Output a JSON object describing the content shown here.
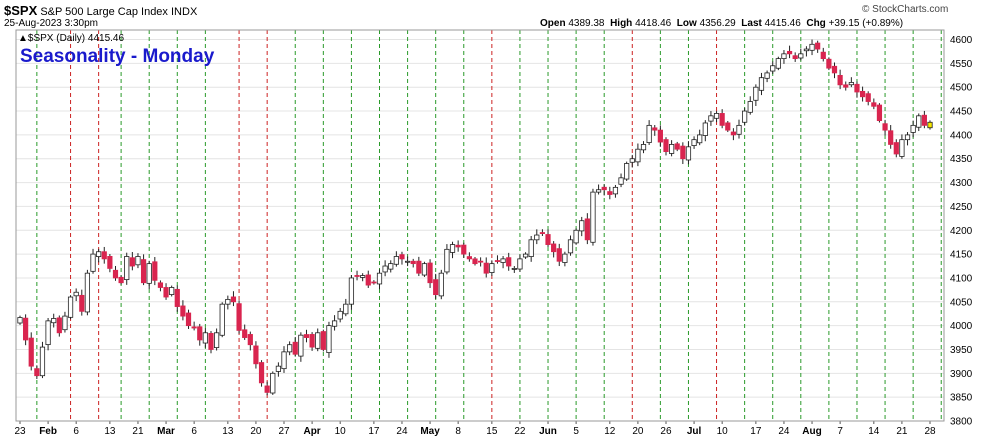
{
  "header": {
    "symbol": "$SPX",
    "name": "S&P 500 Large Cap Index",
    "exchange": "INDX",
    "date": "25-Aug-2023 3:30pm",
    "open_label": "Open",
    "open": "4389.38",
    "high_label": "High",
    "high": "4418.46",
    "low_label": "Low",
    "low": "4356.29",
    "last_label": "Last",
    "last": "4415.46",
    "chg_label": "Chg",
    "chg": "+39.15 (+0.89%)",
    "watermark": "© StockCharts.com"
  },
  "legend": {
    "text": "▲$SPX (Daily) 4415.46"
  },
  "annotation": {
    "text": "Seasonality - Monday",
    "color": "#1a1acc"
  },
  "colors": {
    "up": "#ffffff",
    "down": "#d9254f",
    "last": "#f5e600",
    "green_line": "#2a9a2a",
    "red_line": "#cc2222",
    "grid": "#e4e4e4",
    "text": "#000000"
  },
  "chart_data": {
    "type": "candlestick",
    "title": "Seasonality - Monday",
    "ylim": [
      3800,
      4620
    ],
    "y_ticks": [
      3800,
      3850,
      3900,
      3950,
      4000,
      4050,
      4100,
      4150,
      4200,
      4250,
      4300,
      4350,
      4400,
      4450,
      4500,
      4550,
      4600
    ],
    "x_tick_labels": [
      "23",
      "Feb",
      "6",
      "13",
      "21",
      "Mar",
      "6",
      "13",
      "20",
      "27",
      "Apr",
      "10",
      "17",
      "24",
      "May",
      "8",
      "15",
      "22",
      "Jun",
      "5",
      "12",
      "20",
      "26",
      "Jul",
      "10",
      "17",
      "24",
      "Aug",
      "7",
      "14",
      "21",
      "28"
    ],
    "closes": [
      4017,
      3970,
      3915,
      3895,
      3955,
      4010,
      4015,
      3985,
      4020,
      4060,
      4070,
      4030,
      4110,
      4150,
      4155,
      4140,
      4120,
      4100,
      4090,
      4145,
      4125,
      4145,
      4090,
      4130,
      4095,
      4080,
      4060,
      4080,
      4040,
      4020,
      4000,
      3995,
      3970,
      3985,
      3950,
      3985,
      4045,
      4055,
      4050,
      3990,
      3975,
      3960,
      3920,
      3880,
      3860,
      3900,
      3915,
      3945,
      3960,
      3940,
      3980,
      3975,
      3955,
      3985,
      3950,
      4000,
      4010,
      4030,
      4045,
      4100,
      4105,
      4105,
      4085,
      4090,
      4110,
      4125,
      4130,
      4145,
      4140,
      4135,
      4130,
      4110,
      4130,
      4090,
      4065,
      4110,
      4160,
      4170,
      4165,
      4150,
      4140,
      4130,
      4135,
      4110,
      4130,
      4135,
      4140,
      4125,
      4120,
      4140,
      4150,
      4180,
      4190,
      4195,
      4170,
      4155,
      4135,
      4150,
      4180,
      4200,
      4220,
      4180,
      4280,
      4285,
      4285,
      4275,
      4290,
      4310,
      4340,
      4350,
      4370,
      4380,
      4420,
      4410,
      4385,
      4365,
      4380,
      4370,
      4350,
      4375,
      4390,
      4400,
      4425,
      4440,
      4445,
      4420,
      4410,
      4400,
      4420,
      4450,
      4470,
      4500,
      4520,
      4530,
      4545,
      4560,
      4570,
      4570,
      4560,
      4570,
      4580,
      4590,
      4580,
      4560,
      4540,
      4530,
      4505,
      4500,
      4510,
      4490,
      4480,
      4470,
      4460,
      4430,
      4410,
      4380,
      4360,
      4390,
      4400,
      4420,
      4440,
      4420,
      4415
    ],
    "last_close": 4415.46,
    "seasonality_lines": [
      {
        "type": "green",
        "index": 3
      },
      {
        "type": "red",
        "index": 9
      },
      {
        "type": "red",
        "index": 14
      },
      {
        "type": "green",
        "index": 18
      },
      {
        "type": "green",
        "index": 23
      },
      {
        "type": "green",
        "index": 28
      },
      {
        "type": "green",
        "index": 33
      },
      {
        "type": "red",
        "index": 39
      },
      {
        "type": "red",
        "index": 44
      },
      {
        "type": "green",
        "index": 49
      },
      {
        "type": "green",
        "index": 54
      },
      {
        "type": "green",
        "index": 59
      },
      {
        "type": "green",
        "index": 64
      },
      {
        "type": "green",
        "index": 69
      },
      {
        "type": "green",
        "index": 74
      },
      {
        "type": "green",
        "index": 79
      },
      {
        "type": "red",
        "index": 84
      },
      {
        "type": "green",
        "index": 89
      },
      {
        "type": "green",
        "index": 94
      },
      {
        "type": "green",
        "index": 99
      },
      {
        "type": "green",
        "index": 104
      },
      {
        "type": "red",
        "index": 109
      },
      {
        "type": "green",
        "index": 114
      },
      {
        "type": "green",
        "index": 119
      },
      {
        "type": "red",
        "index": 124
      },
      {
        "type": "green",
        "index": 129
      },
      {
        "type": "green",
        "index": 134
      },
      {
        "type": "green",
        "index": 139
      },
      {
        "type": "green",
        "index": 144
      },
      {
        "type": "green",
        "index": 149
      },
      {
        "type": "green",
        "index": 154
      },
      {
        "type": "green",
        "index": 159
      },
      {
        "type": "green",
        "index": 164
      }
    ]
  }
}
